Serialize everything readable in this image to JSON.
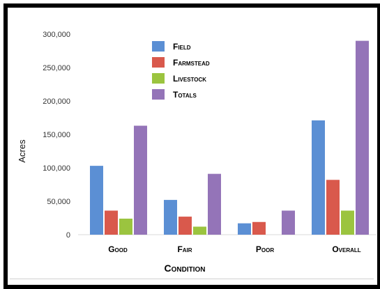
{
  "chart_data": {
    "type": "bar",
    "categories": [
      "Good",
      "Fair",
      "Poor",
      "Overall"
    ],
    "series": [
      {
        "name": "Field",
        "color": "#5B8FD4",
        "values": [
          103000,
          52000,
          17000,
          171000
        ]
      },
      {
        "name": "Farmstead",
        "color": "#D9594C",
        "values": [
          36000,
          27000,
          19000,
          82000
        ]
      },
      {
        "name": "Livestock",
        "color": "#9BC43F",
        "values": [
          24000,
          12000,
          0,
          36000
        ]
      },
      {
        "name": "Totals",
        "color": "#9474B8",
        "values": [
          163000,
          91000,
          36000,
          290000
        ]
      }
    ],
    "ylabel": "Acres",
    "xlabel": "Condition",
    "ylim": [
      0,
      300000
    ],
    "yticks": [
      0,
      50000,
      100000,
      150000,
      200000,
      250000,
      300000
    ],
    "ytick_labels": [
      "0",
      "50,000",
      "100,000",
      "150,000",
      "200,000",
      "250,000",
      "300,000"
    ],
    "grid": false,
    "legend_position": "top-center"
  }
}
